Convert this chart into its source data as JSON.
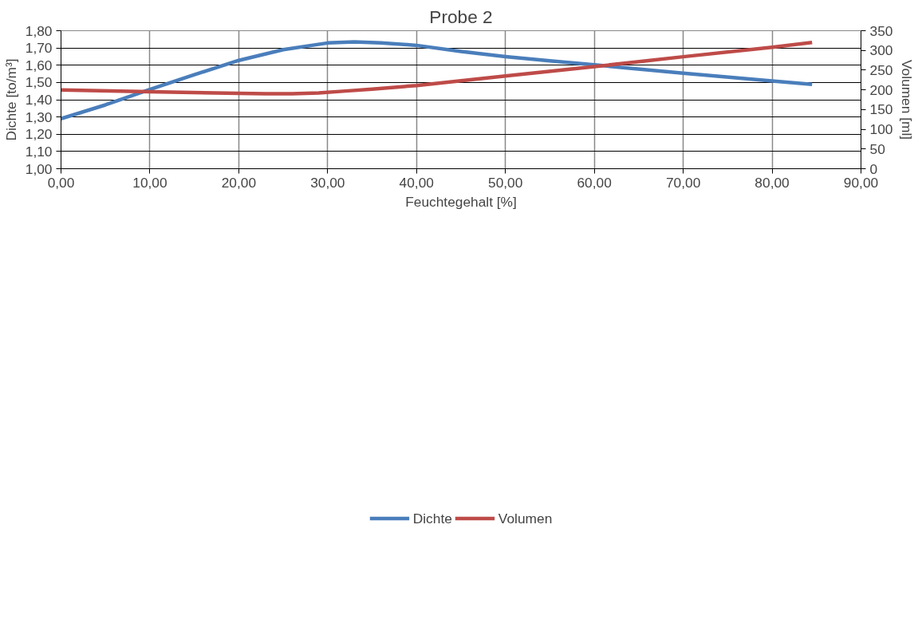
{
  "chart_data": {
    "type": "line",
    "title": "Probe 2",
    "xlabel": "Feuchtegehalt [%]",
    "ylabel": "Dichte [to/m³]",
    "y2label": "Volumen [ml]",
    "series": [
      {
        "name": "Dichte",
        "color": "#4a7ebb",
        "x": [
          0,
          5,
          10,
          15,
          20,
          25,
          30,
          33,
          36,
          40,
          45,
          50,
          55,
          60,
          70,
          80,
          84.5
        ],
        "values": [
          1.29,
          1.37,
          1.46,
          1.545,
          1.628,
          1.69,
          1.729,
          1.735,
          1.73,
          1.715,
          1.68,
          1.65,
          1.625,
          1.602,
          1.554,
          1.509,
          1.489
        ]
      },
      {
        "name": "Volumen",
        "color": "#be4b48",
        "axis": "y2",
        "x": [
          0,
          10,
          20,
          23,
          26,
          29,
          32,
          35,
          40,
          50,
          60,
          70,
          80,
          84.5
        ],
        "values": [
          200,
          195,
          191,
          190,
          190,
          192,
          197,
          202,
          211,
          235,
          259,
          284,
          308,
          320
        ]
      }
    ],
    "xlim": [
      0,
      90
    ],
    "xticks": [
      {
        "value": 0,
        "label": "0,00"
      },
      {
        "value": 10,
        "label": "10,00"
      },
      {
        "value": 20,
        "label": "20,00"
      },
      {
        "value": 30,
        "label": "30,00"
      },
      {
        "value": 40,
        "label": "40,00"
      },
      {
        "value": 50,
        "label": "50,00"
      },
      {
        "value": 60,
        "label": "60,00"
      },
      {
        "value": 70,
        "label": "70,00"
      },
      {
        "value": 80,
        "label": "80,00"
      },
      {
        "value": 90,
        "label": "90,00"
      }
    ],
    "ylim": [
      1.0,
      1.8
    ],
    "yticks": [
      {
        "value": 1.0,
        "label": "1,00"
      },
      {
        "value": 1.1,
        "label": "1,10"
      },
      {
        "value": 1.2,
        "label": "1,20"
      },
      {
        "value": 1.3,
        "label": "1,30"
      },
      {
        "value": 1.4,
        "label": "1,40"
      },
      {
        "value": 1.5,
        "label": "1,50"
      },
      {
        "value": 1.6,
        "label": "1,60"
      },
      {
        "value": 1.7,
        "label": "1,70"
      },
      {
        "value": 1.8,
        "label": "1,80"
      }
    ],
    "y2lim": [
      0,
      350
    ],
    "y2ticks": [
      0,
      50,
      100,
      150,
      200,
      250,
      300,
      350
    ],
    "grid": true,
    "legend": "bottom",
    "marker": "none",
    "line_style": "solid"
  }
}
